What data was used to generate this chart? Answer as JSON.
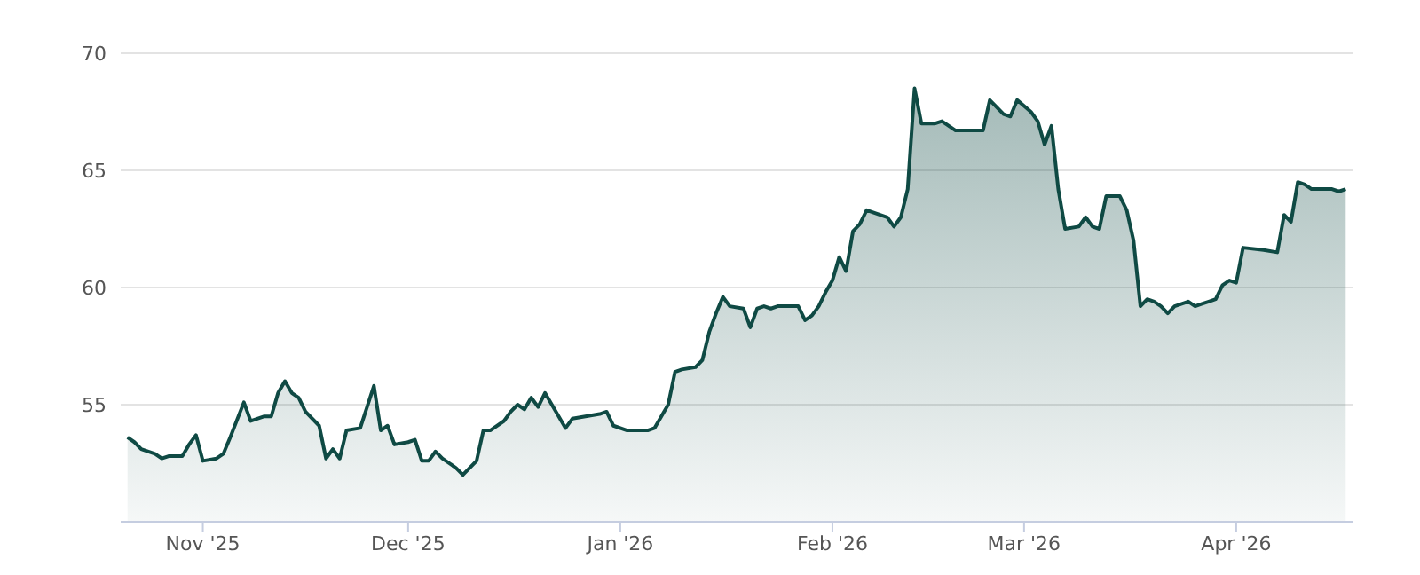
{
  "chart_data": {
    "type": "area",
    "x": [
      "2025-10-21",
      "2025-10-22",
      "2025-10-23",
      "2025-10-25",
      "2025-10-26",
      "2025-10-27",
      "2025-10-29",
      "2025-10-30",
      "2025-10-31",
      "2025-11-01",
      "2025-11-03",
      "2025-11-04",
      "2025-11-05",
      "2025-11-07",
      "2025-11-08",
      "2025-11-10",
      "2025-11-11",
      "2025-11-12",
      "2025-11-13",
      "2025-11-14",
      "2025-11-15",
      "2025-11-16",
      "2025-11-18",
      "2025-11-19",
      "2025-11-20",
      "2025-11-21",
      "2025-11-22",
      "2025-11-24",
      "2025-11-26",
      "2025-11-27",
      "2025-11-28",
      "2025-11-29",
      "2025-12-01",
      "2025-12-02",
      "2025-12-03",
      "2025-12-04",
      "2025-12-05",
      "2025-12-06",
      "2025-12-08",
      "2025-12-09",
      "2025-12-11",
      "2025-12-12",
      "2025-12-13",
      "2025-12-15",
      "2025-12-16",
      "2025-12-17",
      "2025-12-18",
      "2025-12-19",
      "2025-12-20",
      "2025-12-21",
      "2025-12-23",
      "2025-12-24",
      "2025-12-25",
      "2025-12-29",
      "2025-12-30",
      "2025-12-31",
      "2026-01-02",
      "2026-01-05",
      "2026-01-06",
      "2026-01-07",
      "2026-01-08",
      "2026-01-09",
      "2026-01-10",
      "2026-01-12",
      "2026-01-13",
      "2026-01-14",
      "2026-01-15",
      "2026-01-16",
      "2026-01-17",
      "2026-01-19",
      "2026-01-20",
      "2026-01-21",
      "2026-01-22",
      "2026-01-23",
      "2026-01-24",
      "2026-01-27",
      "2026-01-28",
      "2026-01-29",
      "2026-01-30",
      "2026-01-31",
      "2026-02-01",
      "2026-02-02",
      "2026-02-03",
      "2026-02-04",
      "2026-02-05",
      "2026-02-06",
      "2026-02-09",
      "2026-02-10",
      "2026-02-11",
      "2026-02-12",
      "2026-02-13",
      "2026-02-14",
      "2026-02-16",
      "2026-02-17",
      "2026-02-18",
      "2026-02-19",
      "2026-02-23",
      "2026-02-24",
      "2026-02-26",
      "2026-02-27",
      "2026-02-28",
      "2026-03-02",
      "2026-03-03",
      "2026-03-04",
      "2026-03-05",
      "2026-03-06",
      "2026-03-07",
      "2026-03-09",
      "2026-03-10",
      "2026-03-11",
      "2026-03-12",
      "2026-03-13",
      "2026-03-15",
      "2026-03-16",
      "2026-03-17",
      "2026-03-18",
      "2026-03-19",
      "2026-03-20",
      "2026-03-21",
      "2026-03-22",
      "2026-03-23",
      "2026-03-25",
      "2026-03-26",
      "2026-03-27",
      "2026-03-28",
      "2026-03-29",
      "2026-03-30",
      "2026-03-31",
      "2026-04-01",
      "2026-04-02",
      "2026-04-05",
      "2026-04-07",
      "2026-04-08",
      "2026-04-09",
      "2026-04-10",
      "2026-04-11",
      "2026-04-12",
      "2026-04-14",
      "2026-04-15",
      "2026-04-16",
      "2026-04-17"
    ],
    "series": [
      {
        "color": "#0f4a44",
        "values": [
          53.6,
          53.4,
          53.1,
          52.9,
          52.7,
          52.8,
          52.8,
          53.3,
          53.7,
          52.6,
          52.7,
          52.9,
          53.6,
          55.1,
          54.3,
          54.5,
          54.5,
          55.5,
          56.0,
          55.5,
          55.3,
          54.7,
          54.1,
          52.7,
          53.1,
          52.7,
          53.9,
          54.0,
          55.8,
          53.9,
          54.1,
          53.3,
          53.4,
          53.5,
          52.6,
          52.6,
          53.0,
          52.7,
          52.3,
          52.0,
          52.6,
          53.9,
          53.9,
          54.3,
          54.7,
          55.0,
          54.8,
          55.3,
          54.9,
          55.5,
          54.5,
          54.0,
          54.4,
          54.6,
          54.7,
          54.1,
          53.9,
          53.9,
          54.0,
          54.5,
          55.0,
          56.4,
          56.5,
          56.6,
          56.9,
          58.1,
          58.9,
          59.6,
          59.2,
          59.1,
          58.3,
          59.1,
          59.2,
          59.1,
          59.2,
          59.2,
          58.6,
          58.8,
          59.2,
          59.8,
          60.3,
          61.3,
          60.7,
          62.4,
          62.7,
          63.3,
          63.0,
          62.6,
          63.0,
          64.2,
          68.5,
          67.0,
          67.0,
          67.1,
          66.9,
          66.7,
          66.7,
          68.0,
          67.4,
          67.3,
          68.0,
          67.5,
          67.1,
          66.1,
          66.9,
          64.2,
          62.5,
          62.6,
          63.0,
          62.6,
          62.5,
          63.9,
          63.9,
          63.3,
          62.0,
          59.2,
          59.5,
          59.4,
          59.2,
          58.9,
          59.2,
          59.4,
          59.2,
          59.3,
          59.4,
          59.5,
          60.1,
          60.3,
          60.2,
          61.7,
          61.6,
          61.5,
          63.1,
          62.8,
          64.5,
          64.4,
          64.2,
          64.2,
          64.2,
          64.1,
          64.2
        ]
      }
    ],
    "xlim": [
      "2025-10-20",
      "2026-04-18"
    ],
    "xticks": [
      {
        "value": "2025-11-01",
        "label": "Nov '25"
      },
      {
        "value": "2025-12-01",
        "label": "Dec '25"
      },
      {
        "value": "2026-01-01",
        "label": "Jan '26"
      },
      {
        "value": "2026-02-01",
        "label": "Feb '26"
      },
      {
        "value": "2026-03-01",
        "label": "Mar '26"
      },
      {
        "value": "2026-04-01",
        "label": "Apr '26"
      }
    ],
    "ylim": [
      50,
      70
    ],
    "yticks": [
      55,
      60,
      65,
      70
    ],
    "grid": "y",
    "legend": false,
    "marker": "none",
    "line_style": "solid"
  }
}
